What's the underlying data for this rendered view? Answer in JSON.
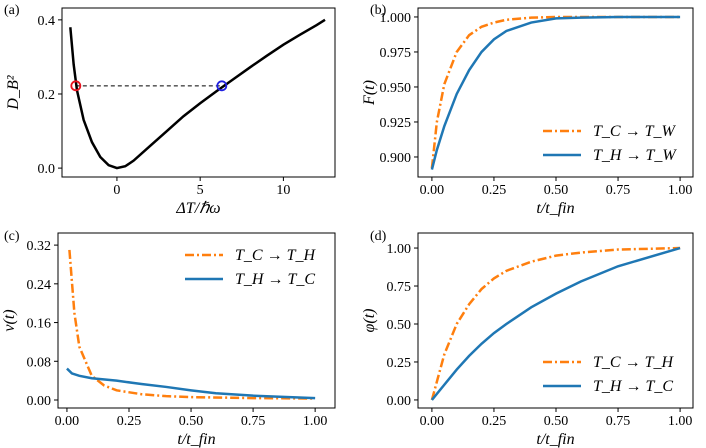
{
  "chart_data": [
    {
      "type": "line",
      "panel_label": "(a)",
      "xlabel": "ΔT/ℏω",
      "ylabel": "D_B²",
      "xlim": [
        -3.3,
        13.1
      ],
      "ylim": [
        -0.024,
        0.432
      ],
      "xticks": [
        0,
        5,
        10
      ],
      "yticks": [
        {
          "value": 0,
          "label": "0.0"
        },
        0.2,
        0.4
      ],
      "series": [
        {
          "color": "#000000",
          "linestyle": "solid",
          "x": [
            -2.8,
            -2.6,
            -2.4,
            -2.0,
            -1.5,
            -1.0,
            -0.5,
            0,
            0.5,
            1,
            2,
            3,
            4,
            5,
            6,
            7,
            8,
            9,
            10,
            11,
            12,
            12.5
          ],
          "values": [
            0.38,
            0.28,
            0.21,
            0.13,
            0.07,
            0.03,
            0.008,
            0.0,
            0.005,
            0.02,
            0.06,
            0.1,
            0.14,
            0.175,
            0.208,
            0.24,
            0.272,
            0.303,
            0.333,
            0.36,
            0.386,
            0.4
          ]
        },
        {
          "color": "#000000",
          "linestyle": "dashed",
          "x": [
            -2.47,
            6.3
          ],
          "values": [
            0.222,
            0.222
          ]
        },
        {
          "color": "#e8121e",
          "linestyle": "none",
          "marker": "circle",
          "x": [
            -2.47
          ],
          "values": [
            0.222
          ]
        },
        {
          "color": "#1f1fe0",
          "linestyle": "none",
          "marker": "circle",
          "x": [
            6.3
          ],
          "values": [
            0.222
          ]
        }
      ]
    },
    {
      "type": "line",
      "panel_label": "(b)",
      "xlabel": "t/t_fin",
      "ylabel": "F(t)",
      "legend": "lower right",
      "xlim": [
        -0.056,
        1.052
      ],
      "ylim": [
        0.8857,
        1.0064
      ],
      "xticks": [
        {
          "value": 0,
          "label": "0.00"
        },
        0.25,
        {
          "value": 0.5,
          "label": "0.50"
        },
        0.75,
        {
          "value": 1,
          "label": "1.00"
        }
      ],
      "yticks": [
        {
          "value": 0.9,
          "label": "0.900"
        },
        0.925,
        {
          "value": 0.95,
          "label": "0.950"
        },
        0.975,
        {
          "value": 1,
          "label": "1.000"
        }
      ],
      "series": [
        {
          "name": "T_C → T_W",
          "color": "#ff7f0e",
          "linestyle": "dashdot",
          "x": [
            0,
            0.02,
            0.05,
            0.1,
            0.15,
            0.2,
            0.25,
            0.3,
            0.4,
            0.5,
            0.6,
            0.75,
            1.0
          ],
          "values": [
            0.892,
            0.925,
            0.952,
            0.975,
            0.987,
            0.993,
            0.996,
            0.998,
            0.9995,
            1,
            1,
            1,
            1
          ]
        },
        {
          "name": "T_H → T_W",
          "color": "#1f77b4",
          "linestyle": "solid",
          "x": [
            0,
            0.02,
            0.05,
            0.1,
            0.15,
            0.2,
            0.25,
            0.3,
            0.4,
            0.5,
            0.6,
            0.75,
            1.0
          ],
          "values": [
            0.891,
            0.905,
            0.922,
            0.945,
            0.962,
            0.975,
            0.984,
            0.99,
            0.996,
            0.999,
            0.9995,
            1,
            1
          ]
        }
      ]
    },
    {
      "type": "line",
      "panel_label": "(c)",
      "xlabel": "t/t_fin",
      "ylabel": "v(t)",
      "legend": "upper right",
      "xlim": [
        -0.036,
        1.08
      ],
      "ylim": [
        -0.0165,
        0.345
      ],
      "xticks": [
        {
          "value": 0,
          "label": "0.00"
        },
        0.25,
        {
          "value": 0.5,
          "label": "0.50"
        },
        0.75,
        {
          "value": 1,
          "label": "1.00"
        }
      ],
      "yticks": [
        {
          "value": 0,
          "label": "0.00"
        },
        0.08,
        0.16,
        0.24,
        0.32
      ],
      "series": [
        {
          "name": "T_C → T_H",
          "color": "#ff7f0e",
          "linestyle": "dashdot",
          "x": [
            0.01,
            0.03,
            0.05,
            0.1,
            0.15,
            0.2,
            0.3,
            0.4,
            0.5,
            0.75,
            1.0
          ],
          "values": [
            0.31,
            0.18,
            0.11,
            0.05,
            0.03,
            0.02,
            0.012,
            0.008,
            0.006,
            0.004,
            0.003
          ]
        },
        {
          "name": "T_H → T_C",
          "color": "#1f77b4",
          "linestyle": "solid",
          "x": [
            0,
            0.02,
            0.05,
            0.1,
            0.2,
            0.3,
            0.4,
            0.5,
            0.6,
            0.75,
            1.0
          ],
          "values": [
            0.065,
            0.055,
            0.05,
            0.045,
            0.04,
            0.033,
            0.027,
            0.02,
            0.014,
            0.009,
            0.004
          ]
        }
      ]
    },
    {
      "type": "line",
      "panel_label": "(d)",
      "xlabel": "t/t_fin",
      "ylabel": "φ(t)",
      "legend": "lower right",
      "xlim": [
        -0.056,
        1.052
      ],
      "ylim": [
        -0.053,
        1.099
      ],
      "xticks": [
        {
          "value": 0,
          "label": "0.00"
        },
        0.25,
        {
          "value": 0.5,
          "label": "0.50"
        },
        0.75,
        {
          "value": 1,
          "label": "1.00"
        }
      ],
      "yticks": [
        {
          "value": 0,
          "label": "0.00"
        },
        0.25,
        {
          "value": 0.5,
          "label": "0.50"
        },
        0.75,
        {
          "value": 1,
          "label": "1.00"
        }
      ],
      "series": [
        {
          "name": "T_C → T_H",
          "color": "#ff7f0e",
          "linestyle": "dashdot",
          "x": [
            0,
            0.05,
            0.1,
            0.15,
            0.2,
            0.25,
            0.3,
            0.4,
            0.5,
            0.6,
            0.75,
            1.0
          ],
          "values": [
            0,
            0.3,
            0.5,
            0.63,
            0.73,
            0.8,
            0.85,
            0.91,
            0.95,
            0.97,
            0.99,
            1.0
          ]
        },
        {
          "name": "T_H → T_C",
          "color": "#1f77b4",
          "linestyle": "solid",
          "x": [
            0,
            0.05,
            0.1,
            0.15,
            0.2,
            0.25,
            0.3,
            0.4,
            0.5,
            0.6,
            0.75,
            1.0
          ],
          "values": [
            0,
            0.1,
            0.2,
            0.29,
            0.37,
            0.44,
            0.5,
            0.61,
            0.7,
            0.78,
            0.88,
            1.0
          ]
        }
      ]
    }
  ]
}
